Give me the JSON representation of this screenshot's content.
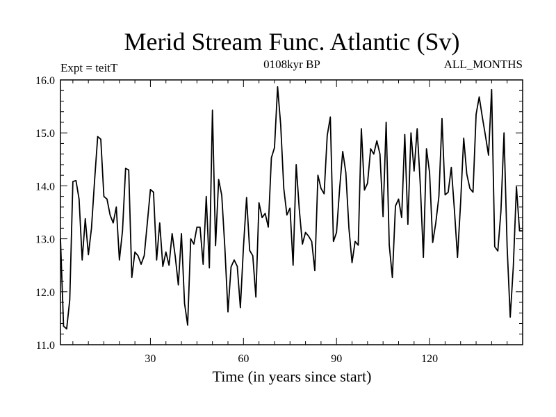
{
  "chart_data": {
    "type": "line",
    "title": "Merid Stream Func. Atlantic (Sv)",
    "subtitle": "0108kyr BP",
    "left_label": "Expt = teitT",
    "right_label": "ALL_MONTHS",
    "xlabel": "Time (in years since start)",
    "ylabel": "",
    "xlim": [
      1,
      150
    ],
    "ylim": [
      11.0,
      16.0
    ],
    "xticks": [
      30,
      60,
      90,
      120
    ],
    "yticks": [
      11.0,
      12.0,
      13.0,
      14.0,
      15.0,
      16.0
    ],
    "series": [
      {
        "name": "Merid Stream Func. Atlantic",
        "color": "#000000",
        "x": [
          1,
          2,
          3,
          4,
          5,
          6,
          7,
          8,
          9,
          10,
          11,
          12,
          13,
          14,
          15,
          16,
          17,
          18,
          19,
          20,
          21,
          22,
          23,
          24,
          25,
          26,
          27,
          28,
          29,
          30,
          31,
          32,
          33,
          34,
          35,
          36,
          37,
          38,
          39,
          40,
          41,
          42,
          43,
          44,
          45,
          46,
          47,
          48,
          49,
          50,
          51,
          52,
          53,
          54,
          55,
          56,
          57,
          58,
          59,
          60,
          61,
          62,
          63,
          64,
          65,
          66,
          67,
          68,
          69,
          70,
          71,
          72,
          73,
          74,
          75,
          76,
          77,
          78,
          79,
          80,
          81,
          82,
          83,
          84,
          85,
          86,
          87,
          88,
          89,
          90,
          91,
          92,
          93,
          94,
          95,
          96,
          97,
          98,
          99,
          100,
          101,
          102,
          103,
          104,
          105,
          106,
          107,
          108,
          109,
          110,
          111,
          112,
          113,
          114,
          115,
          116,
          117,
          118,
          119,
          120,
          121,
          122,
          123,
          124,
          125,
          126,
          127,
          128,
          129,
          130,
          131,
          132,
          133,
          134,
          135,
          136,
          137,
          138,
          139,
          140,
          141,
          142,
          143,
          144,
          145,
          146,
          147,
          148,
          149,
          150
        ],
        "values": [
          13.0,
          11.35,
          11.3,
          11.85,
          14.08,
          14.1,
          13.75,
          12.6,
          13.38,
          12.7,
          13.2,
          14.1,
          14.93,
          14.88,
          13.8,
          13.75,
          13.45,
          13.3,
          13.6,
          12.6,
          13.15,
          14.33,
          14.3,
          12.27,
          12.75,
          12.68,
          12.52,
          12.68,
          13.3,
          13.93,
          13.88,
          12.6,
          13.3,
          12.48,
          12.75,
          12.5,
          13.1,
          12.67,
          12.13,
          13.1,
          11.78,
          11.37,
          13.0,
          12.9,
          13.22,
          13.22,
          12.52,
          13.8,
          12.45,
          15.43,
          12.87,
          14.12,
          13.82,
          12.83,
          11.62,
          12.47,
          12.6,
          12.48,
          11.7,
          12.85,
          13.78,
          12.78,
          12.68,
          11.9,
          13.68,
          13.4,
          13.48,
          13.22,
          14.53,
          14.72,
          15.87,
          15.15,
          13.95,
          13.45,
          13.58,
          12.5,
          14.4,
          13.55,
          12.9,
          13.12,
          13.05,
          12.95,
          12.4,
          14.2,
          13.95,
          13.85,
          14.95,
          15.3,
          12.95,
          13.12,
          13.95,
          14.65,
          14.25,
          13.2,
          12.55,
          12.95,
          12.88,
          15.08,
          13.92,
          14.05,
          14.7,
          14.6,
          14.85,
          14.6,
          13.42,
          15.2,
          12.88,
          12.27,
          13.62,
          13.75,
          13.4,
          14.97,
          13.27,
          15.0,
          14.28,
          15.08,
          14.02,
          12.65,
          14.7,
          14.25,
          12.93,
          13.3,
          13.8,
          15.27,
          13.83,
          13.88,
          14.35,
          13.55,
          12.65,
          13.68,
          14.9,
          14.22,
          13.95,
          13.88,
          15.35,
          15.68,
          15.3,
          14.95,
          14.58,
          15.82,
          12.85,
          12.77,
          13.52,
          15.0,
          12.85,
          11.52,
          12.48,
          13.98,
          13.15,
          13.15
        ]
      }
    ]
  }
}
